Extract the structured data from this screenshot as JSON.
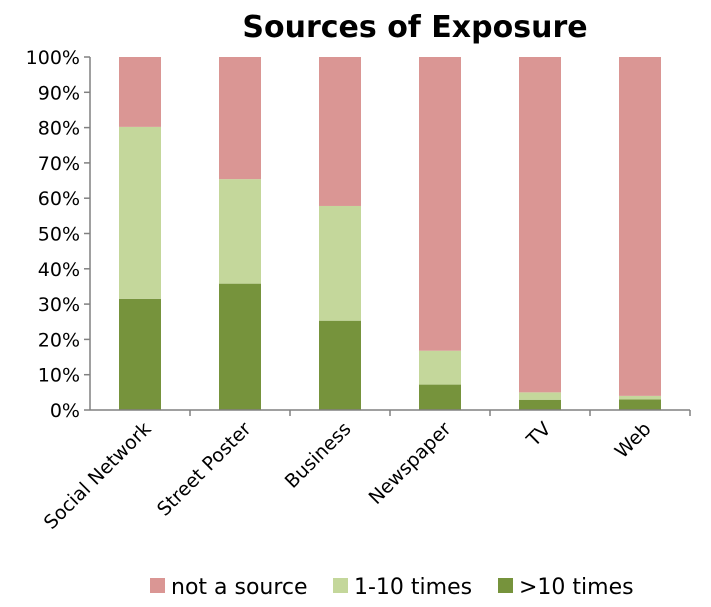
{
  "chart_data": {
    "type": "bar",
    "stacked": true,
    "title": "Sources of Exposure",
    "categories": [
      "Social Network",
      "Street Poster",
      "Business",
      "Newspaper",
      "TV",
      "Web"
    ],
    "series": [
      {
        "name": ">10 times",
        "color": "#76933c",
        "values": [
          31.5,
          35.8,
          25.3,
          7.2,
          2.9,
          3.0
        ]
      },
      {
        "name": "1-10 times",
        "color": "#c4d79b",
        "values": [
          48.7,
          29.6,
          32.5,
          9.6,
          2.1,
          1.0
        ]
      },
      {
        "name": "not a source",
        "color": "#da9694",
        "values": [
          19.8,
          34.6,
          42.2,
          83.2,
          95.0,
          96.0
        ]
      }
    ],
    "legend_order": [
      "not a source",
      "1-10 times",
      ">10 times"
    ],
    "ylim": [
      0,
      100
    ],
    "yticks": [
      "0%",
      "10%",
      "20%",
      "30%",
      "40%",
      "50%",
      "60%",
      "70%",
      "80%",
      "90%",
      "100%"
    ],
    "xlabel": "",
    "ylabel": "",
    "grid": false,
    "legend_position": "bottom"
  }
}
